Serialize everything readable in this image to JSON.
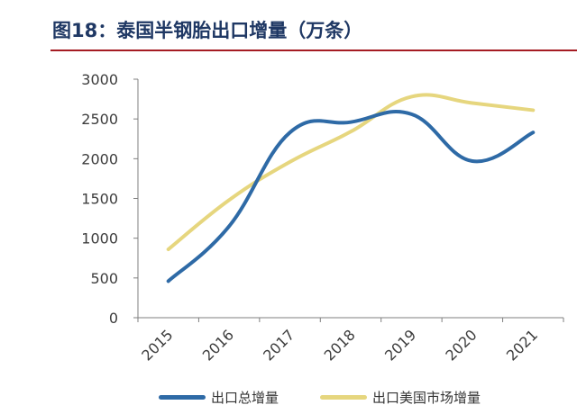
{
  "figure": {
    "title": "图18：泰国半钢胎出口增量（万条）"
  },
  "colors": {
    "title": "#1f3864",
    "title_rule": "#a51c23",
    "series_total": "#2e6aa6",
    "series_us": "#e6d67e",
    "axis": "#7f7f7f"
  },
  "chart_data": {
    "type": "line",
    "title": "",
    "xlabel": "",
    "ylabel": "",
    "categories": [
      "2015",
      "2016",
      "2017",
      "2018",
      "2019",
      "2020",
      "2021"
    ],
    "ylim": [
      0,
      3000
    ],
    "yticks": [
      0,
      500,
      1000,
      1500,
      2000,
      2500,
      3000
    ],
    "grid": false,
    "legend_position": "bottom",
    "smooth": true,
    "series": [
      {
        "name": "出口总增量",
        "values": [
          460,
          1150,
          2330,
          2460,
          2560,
          1970,
          2330
        ]
      },
      {
        "name": "出口美国市场增量",
        "values": [
          860,
          1480,
          1960,
          2340,
          2780,
          2700,
          2610
        ]
      }
    ]
  }
}
